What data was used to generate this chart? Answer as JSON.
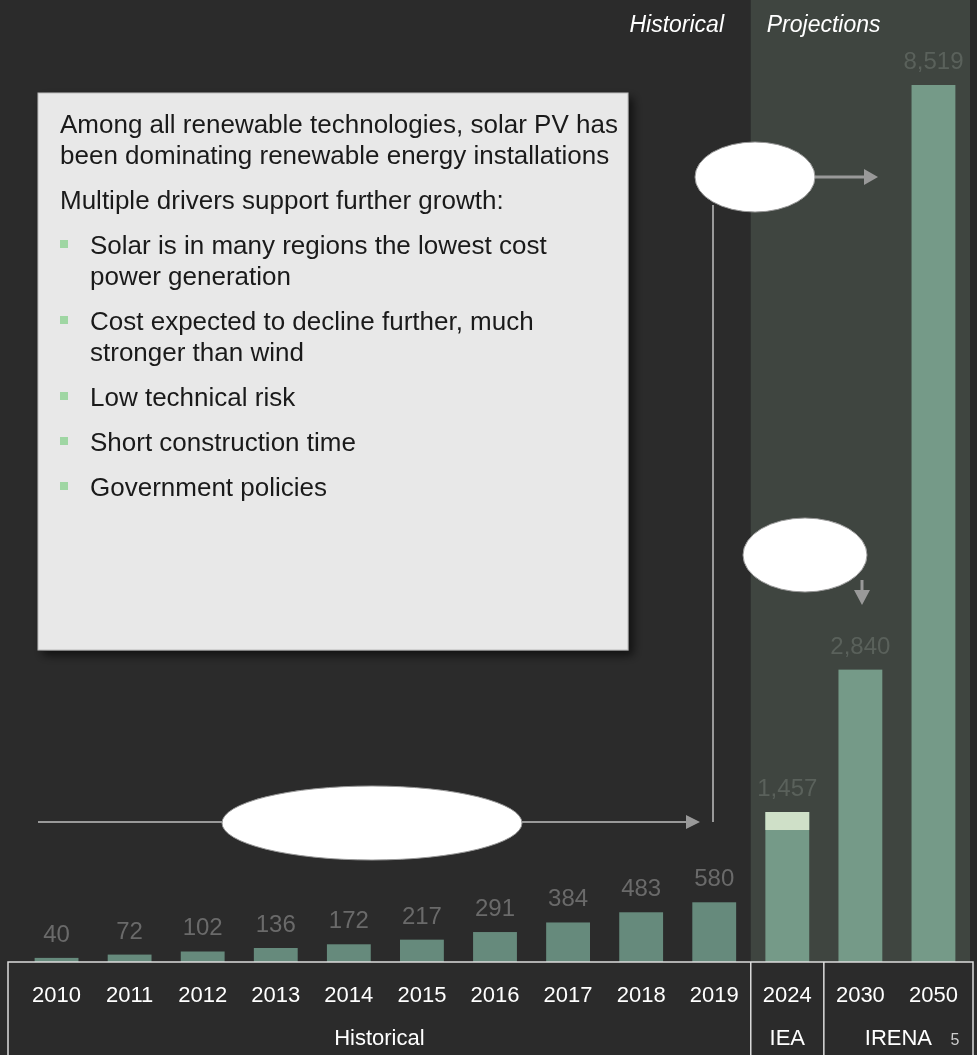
{
  "chart_data": {
    "type": "bar",
    "categories": [
      "2010",
      "2011",
      "2012",
      "2013",
      "2014",
      "2015",
      "2016",
      "2017",
      "2018",
      "2019",
      "2024",
      "2030",
      "2050"
    ],
    "series": [
      {
        "colors": [
          "#668a7c",
          "#668a7c",
          "#668a7c",
          "#668a7c",
          "#668a7c",
          "#668a7c",
          "#668a7c",
          "#668a7c",
          "#668a7c",
          "#668a7c",
          "#759a88",
          "#759a88",
          "#759a88"
        ],
        "values": [
          40,
          72,
          102,
          136,
          172,
          217,
          291,
          384,
          483,
          580,
          1457,
          2840,
          8519
        ],
        "value_labels": [
          "40",
          "72",
          "102",
          "136",
          "172",
          "217",
          "291",
          "384",
          "483",
          "580",
          "1,457",
          "2,840",
          "8,519"
        ]
      }
    ],
    "bands": [
      {
        "axis": "x",
        "from": "2024",
        "to": "2050",
        "label": "Projections",
        "color": "#3f4540"
      }
    ],
    "annotations": [
      "Historical",
      "Among all renewable technologies, solar PV has been dominating renewable energy installations",
      "Multiple drivers support further growth:",
      "Solar is in many regions the lowest cost power generation",
      "Cost expected to decline further, much stronger than wind",
      "Low technical risk",
      "Short construction time",
      "Government policies",
      "Historical",
      "IEA",
      "IRENA",
      "5"
    ]
  }
}
